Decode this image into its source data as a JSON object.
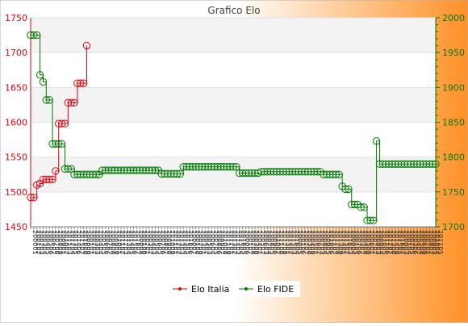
{
  "chart_data": {
    "type": "line",
    "title": "Grafico Elo",
    "y_left": {
      "range": [
        1450,
        1750
      ],
      "ticks": [
        1450,
        1500,
        1550,
        1600,
        1650,
        1700,
        1750
      ]
    },
    "y_right": {
      "range": [
        1700,
        2000
      ],
      "ticks": [
        1700,
        1750,
        1800,
        1850,
        1900,
        1950,
        2000
      ]
    },
    "x_tick_labels": "illegible (dense overlapping date labels)",
    "grid": true,
    "legend_position": "bottom-center",
    "series": [
      {
        "name": "Elo Italia",
        "axis": "left",
        "color": "#e8000b",
        "values": [
          1492,
          1492,
          1510,
          1512,
          1518,
          1518,
          1518,
          1518,
          1530,
          1598,
          1598,
          1598,
          1628,
          1628,
          1628,
          1656,
          1656,
          1656,
          1710
        ]
      },
      {
        "name": "Elo FIDE",
        "axis": "right",
        "color": "#007a00",
        "values": [
          1975,
          1975,
          1975,
          1918,
          1908,
          1882,
          1882,
          1819,
          1819,
          1819,
          1819,
          1783,
          1783,
          1783,
          1775,
          1775,
          1775,
          1775,
          1775,
          1775,
          1775,
          1775,
          1775,
          1781,
          1781,
          1781,
          1781,
          1781,
          1781,
          1781,
          1781,
          1781,
          1781,
          1781,
          1781,
          1781,
          1781,
          1781,
          1781,
          1781,
          1781,
          1781,
          1776,
          1776,
          1776,
          1776,
          1776,
          1776,
          1776,
          1786,
          1786,
          1786,
          1786,
          1786,
          1786,
          1786,
          1786,
          1786,
          1786,
          1786,
          1786,
          1786,
          1786,
          1786,
          1786,
          1786,
          1786,
          1777,
          1777,
          1777,
          1777,
          1777,
          1777,
          1777,
          1779,
          1779,
          1779,
          1779,
          1779,
          1779,
          1779,
          1779,
          1779,
          1779,
          1779,
          1779,
          1779,
          1779,
          1779,
          1779,
          1779,
          1779,
          1779,
          1779,
          1775,
          1775,
          1775,
          1775,
          1775,
          1775,
          1758,
          1754,
          1754,
          1732,
          1732,
          1732,
          1728,
          1728,
          1709,
          1709,
          1709,
          1823,
          1790,
          1790,
          1790,
          1790,
          1790,
          1790,
          1790,
          1790,
          1790,
          1790,
          1790,
          1790,
          1790,
          1790,
          1790,
          1790,
          1790,
          1790,
          1790
        ]
      }
    ]
  }
}
